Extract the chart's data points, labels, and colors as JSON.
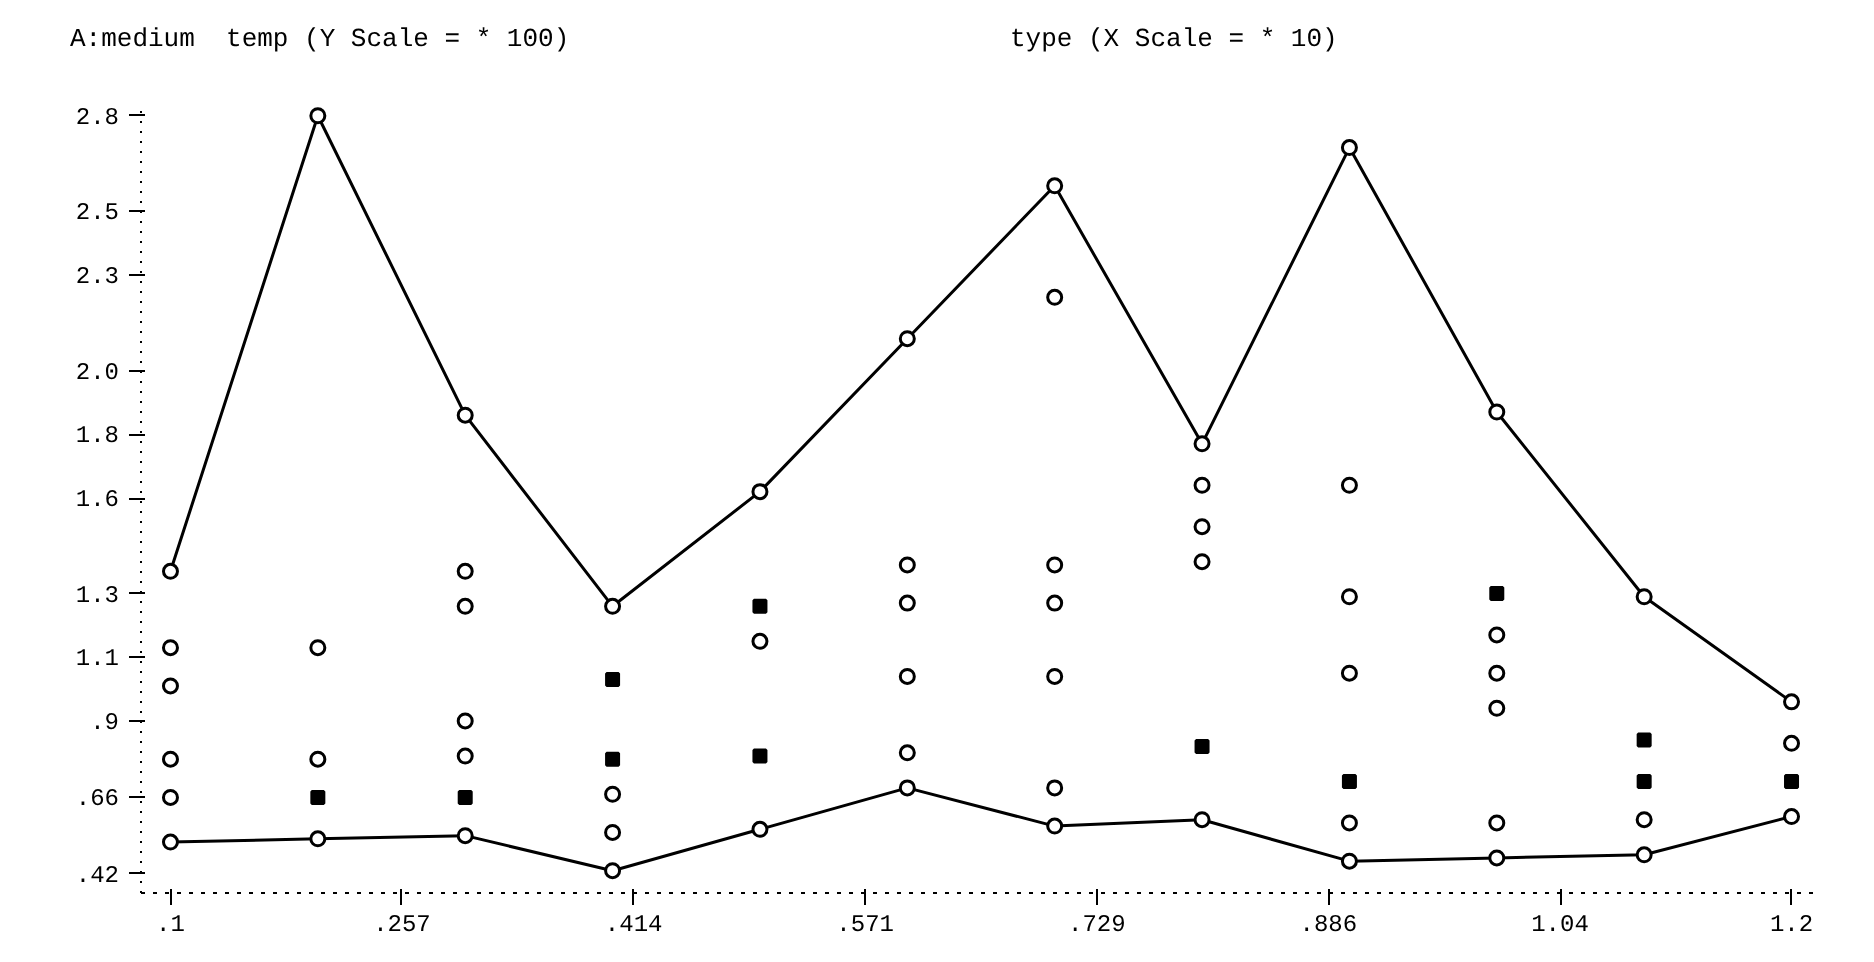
{
  "chart_data": {
    "type": "line",
    "ylabel": "A:medium  temp (Y Scale = * 100)",
    "xlabel": "type (X Scale = * 10)",
    "x": [
      0.1,
      0.2,
      0.3,
      0.4,
      0.5,
      0.6,
      0.7,
      0.8,
      0.9,
      1.0,
      1.1,
      1.2
    ],
    "series": [
      {
        "color": "#000000",
        "marker": "circle",
        "values": [
          1.37,
          2.8,
          1.86,
          1.26,
          1.62,
          2.1,
          2.58,
          1.77,
          2.7,
          1.87,
          1.29,
          0.96
        ]
      },
      {
        "color": "#000000",
        "marker": "circle",
        "values": [
          0.52,
          0.53,
          0.54,
          0.43,
          0.56,
          0.69,
          0.57,
          0.59,
          0.46,
          0.47,
          0.48,
          0.6
        ]
      },
      {
        "type": "scatter",
        "color": "#000000",
        "marker": "circle",
        "x": [
          0.1,
          0.1,
          0.1,
          0.1,
          0.2,
          0.2,
          0.3,
          0.3,
          0.3,
          0.3,
          0.4,
          0.4,
          0.5,
          0.6,
          0.6,
          0.6,
          0.6,
          0.7,
          0.7,
          0.7,
          0.7,
          0.7,
          0.8,
          0.8,
          0.8,
          0.9,
          0.9,
          0.9,
          0.9,
          1.0,
          1.0,
          1.0,
          1.0,
          1.1,
          1.2
        ],
        "values": [
          1.13,
          1.01,
          0.78,
          0.66,
          1.13,
          0.78,
          1.37,
          1.26,
          0.9,
          0.79,
          0.67,
          0.55,
          1.15,
          1.39,
          1.27,
          1.04,
          0.8,
          2.23,
          1.39,
          1.27,
          1.04,
          0.69,
          1.64,
          1.51,
          1.4,
          1.64,
          1.29,
          1.05,
          0.58,
          1.17,
          1.05,
          0.94,
          0.58,
          0.59,
          0.83
        ]
      },
      {
        "type": "scatter",
        "color": "#000000",
        "marker": "square",
        "x": [
          0.2,
          0.3,
          0.4,
          0.4,
          0.5,
          0.5,
          0.8,
          0.9,
          1.0,
          1.1,
          1.1,
          1.2
        ],
        "values": [
          0.66,
          0.66,
          1.03,
          0.78,
          1.26,
          0.79,
          0.82,
          0.71,
          1.3,
          0.84,
          0.71,
          0.71
        ]
      }
    ],
    "xlim": [
      0.08,
      1.22
    ],
    "ylim": [
      0.36,
      2.84
    ],
    "xticks": [
      {
        "value": 0.1,
        "label": ".1"
      },
      {
        "value": 0.2571,
        "label": ".257"
      },
      {
        "value": 0.4143,
        "label": ".414"
      },
      {
        "value": 0.5714,
        "label": ".571"
      },
      {
        "value": 0.7286,
        "label": ".729"
      },
      {
        "value": 0.8857,
        "label": ".886"
      },
      {
        "value": 1.0429,
        "label": "1.04"
      },
      {
        "value": 1.2,
        "label": "1.2"
      }
    ],
    "yticks": [
      {
        "value": 0.42,
        "label": ".42"
      },
      {
        "value": 0.66,
        "label": ".66"
      },
      {
        "value": 0.9,
        "label": ".9"
      },
      {
        "value": 1.1,
        "label": "1.1"
      },
      {
        "value": 1.3,
        "label": "1.3"
      },
      {
        "value": 1.6,
        "label": "1.6"
      },
      {
        "value": 1.8,
        "label": "1.8"
      },
      {
        "value": 2.0,
        "label": "2.0"
      },
      {
        "value": 2.3,
        "label": "2.3"
      },
      {
        "value": 2.5,
        "label": "2.5"
      },
      {
        "value": 2.8,
        "label": "2.8"
      }
    ]
  }
}
